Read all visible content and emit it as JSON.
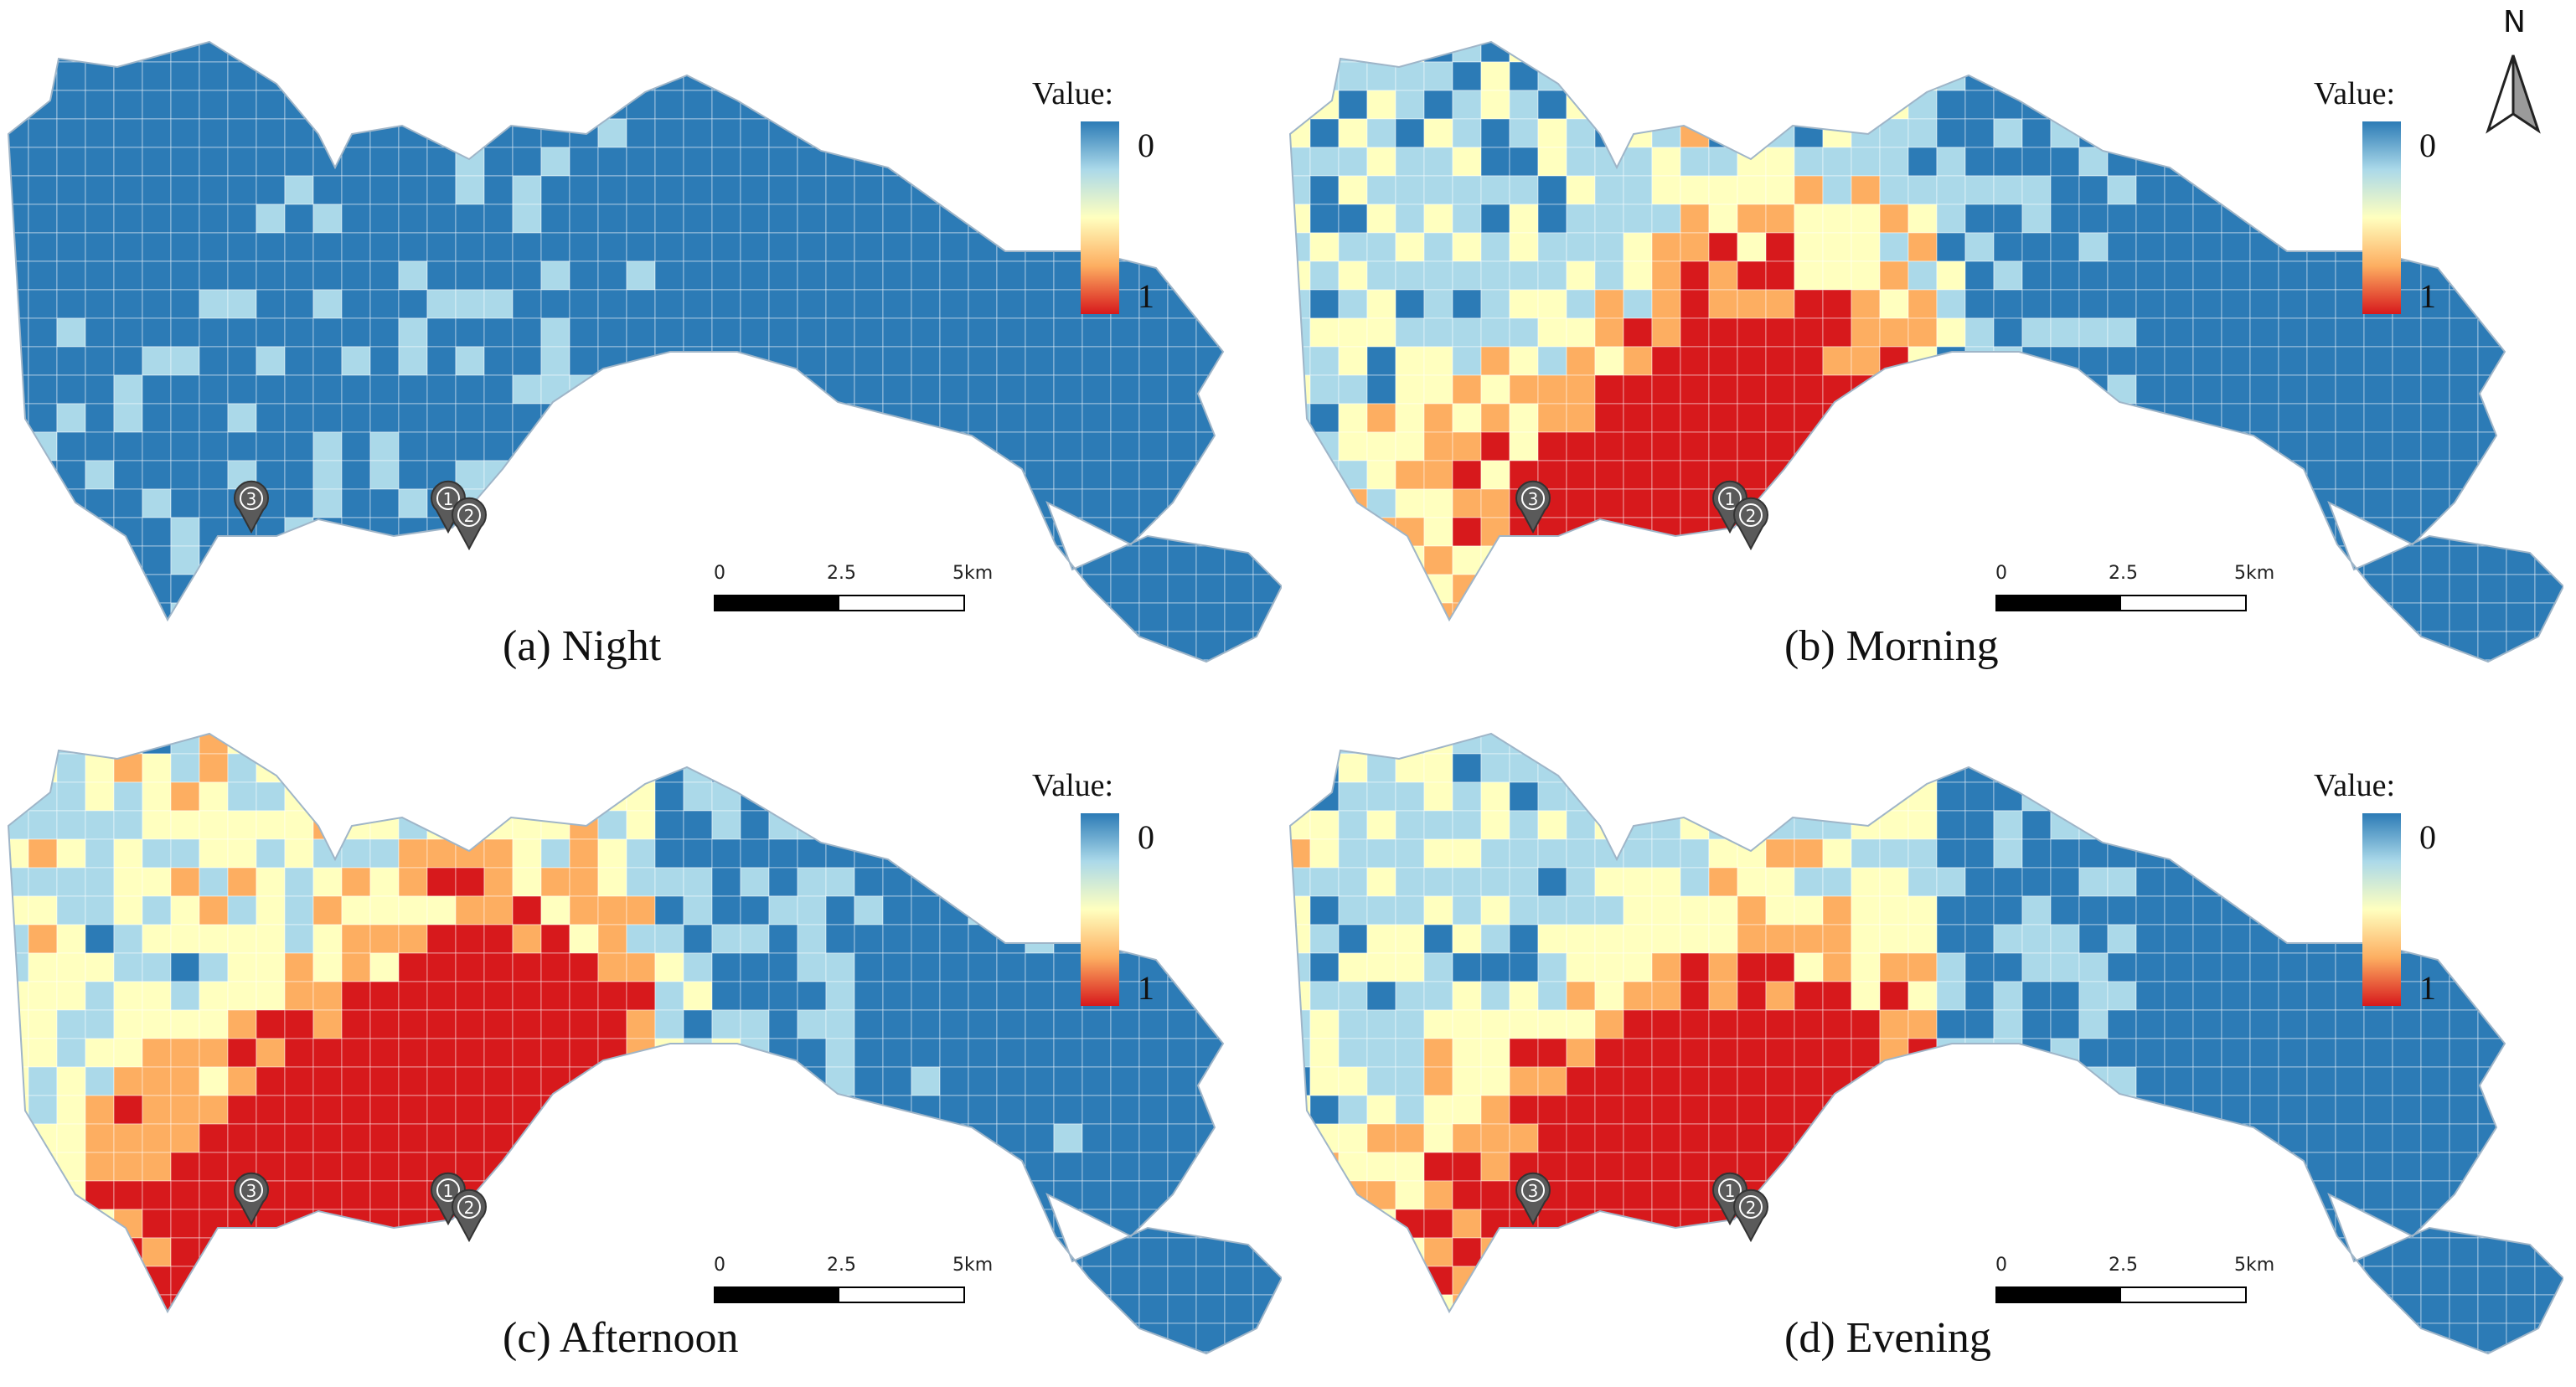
{
  "north_arrow": {
    "label": "N",
    "icon": "north-arrow-icon"
  },
  "legend": {
    "title": "Value:",
    "top_label": "0",
    "bottom_label": "1"
  },
  "scale_bar": {
    "ticks": [
      "0",
      "2.5",
      "5km"
    ]
  },
  "color_scale": [
    "#2c7bb6",
    "#abd9e9",
    "#ffffbf",
    "#fdae61",
    "#d7191c"
  ],
  "markers": [
    "1",
    "2",
    "3"
  ],
  "panels": [
    {
      "id": "a",
      "caption": "(a) Night",
      "intensity": 0.12
    },
    {
      "id": "b",
      "caption": "(b) Morning",
      "intensity": 0.55
    },
    {
      "id": "c",
      "caption": "(c) Afternoon",
      "intensity": 0.75
    },
    {
      "id": "d",
      "caption": "(d) Evening",
      "intensity": 0.6
    }
  ]
}
